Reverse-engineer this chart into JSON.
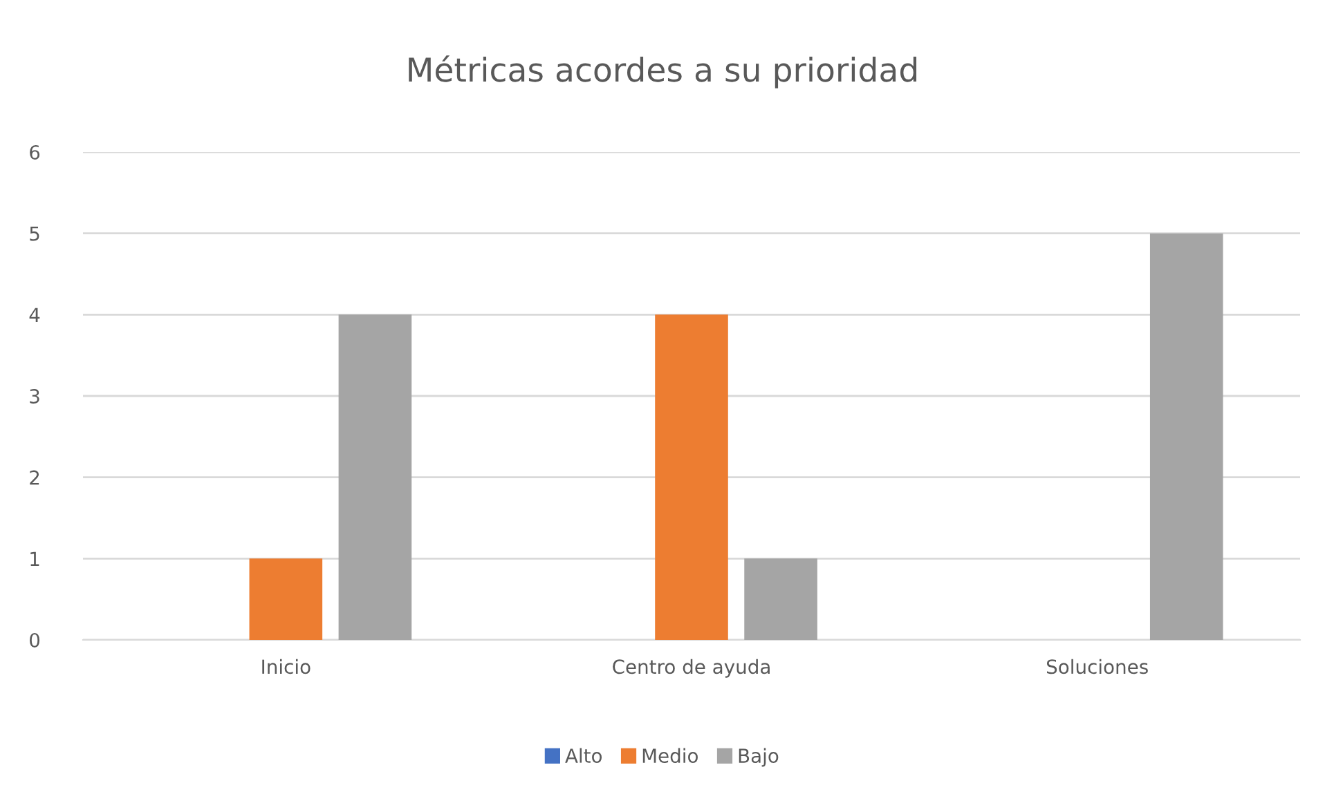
{
  "chart_data": {
    "type": "bar",
    "title": "Métricas acordes a su prioridad",
    "categories": [
      "Inicio",
      "Centro de ayuda",
      "Soluciones"
    ],
    "series": [
      {
        "name": "Alto",
        "color": "#4472c4",
        "values": [
          0,
          0,
          0
        ]
      },
      {
        "name": "Medio",
        "color": "#ed7d31",
        "values": [
          1,
          4,
          0
        ]
      },
      {
        "name": "Bajo",
        "color": "#a5a5a5",
        "values": [
          4,
          1,
          5
        ]
      }
    ],
    "ylim": [
      0,
      6
    ],
    "yticks": [
      0,
      1,
      2,
      3,
      4,
      5,
      6
    ],
    "grid": "y",
    "legend": "bottom"
  }
}
